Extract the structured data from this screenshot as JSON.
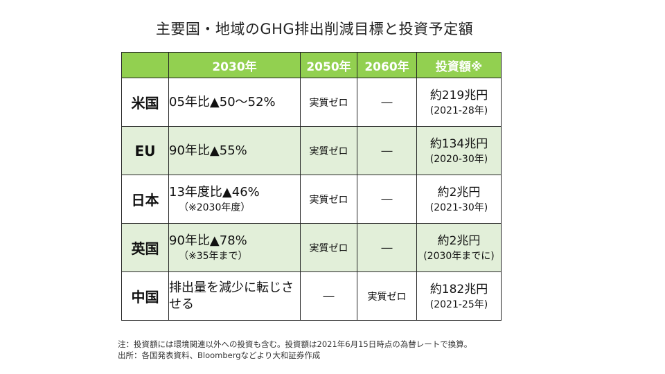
{
  "title": "主要国・地域のGHG排出削減目標と投資予定額",
  "header": {
    "blank": "",
    "col2030": "2030年",
    "col2050": "2050年",
    "col2060": "2060年",
    "invest": "投資額※"
  },
  "rows": [
    {
      "country": "米国",
      "target": "05年比▲50～52%",
      "note": "",
      "y2050": "実質ゼロ",
      "y2060": "―",
      "amount": "約219兆円",
      "period": "(2021-28年)"
    },
    {
      "country": "EU",
      "target": "90年比▲55%",
      "note": "",
      "y2050": "実質ゼロ",
      "y2060": "―",
      "amount": "約134兆円",
      "period": "(2020-30年)"
    },
    {
      "country": "日本",
      "target": "13年度比▲46%",
      "note": "（※2030年度）",
      "y2050": "実質ゼロ",
      "y2060": "―",
      "amount": "約2兆円",
      "period": "(2021-30年)"
    },
    {
      "country": "英国",
      "target": "90年比▲78%",
      "note": "（※35年まで）",
      "y2050": "実質ゼロ",
      "y2060": "―",
      "amount": "約2兆円",
      "period": "(2030年までに)"
    },
    {
      "country": "中国",
      "target": "排出量を減少に転じさせる",
      "note": "",
      "y2050": "―",
      "y2060": "実質ゼロ",
      "amount": "約182兆円",
      "period": "(2021-25年)"
    }
  ],
  "notes": {
    "line1": "注：投資額には環境関連以外への投資も含む。投資額は2021年6月15日時点の為替レートで換算。",
    "line2": "出所：各国発表資料、Bloombergなどより大和証券作成"
  }
}
